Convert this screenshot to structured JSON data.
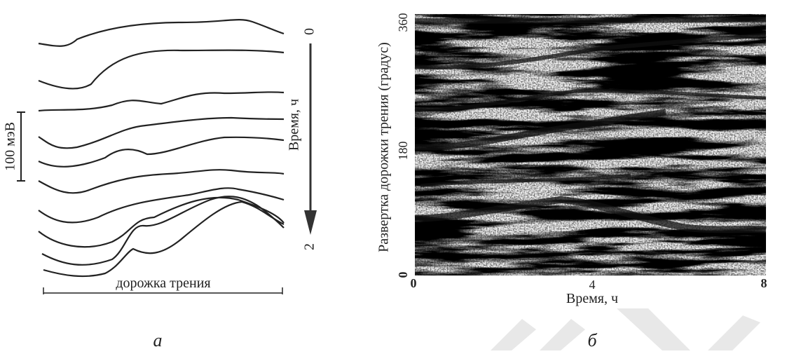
{
  "panel_a": {
    "scale_label": "100 мэВ",
    "axis_label": "Время, ч",
    "start_label": "0",
    "end_label": "2",
    "track_label": "дорожка трения",
    "caption": "а"
  },
  "panel_b": {
    "y_label": "Развертка дорожки трения (градус)",
    "y_ticks": [
      "360",
      "180",
      "0"
    ],
    "x_ticks": [
      "0",
      "4",
      "8"
    ],
    "x_label": "Время, ч",
    "caption": "б"
  }
}
